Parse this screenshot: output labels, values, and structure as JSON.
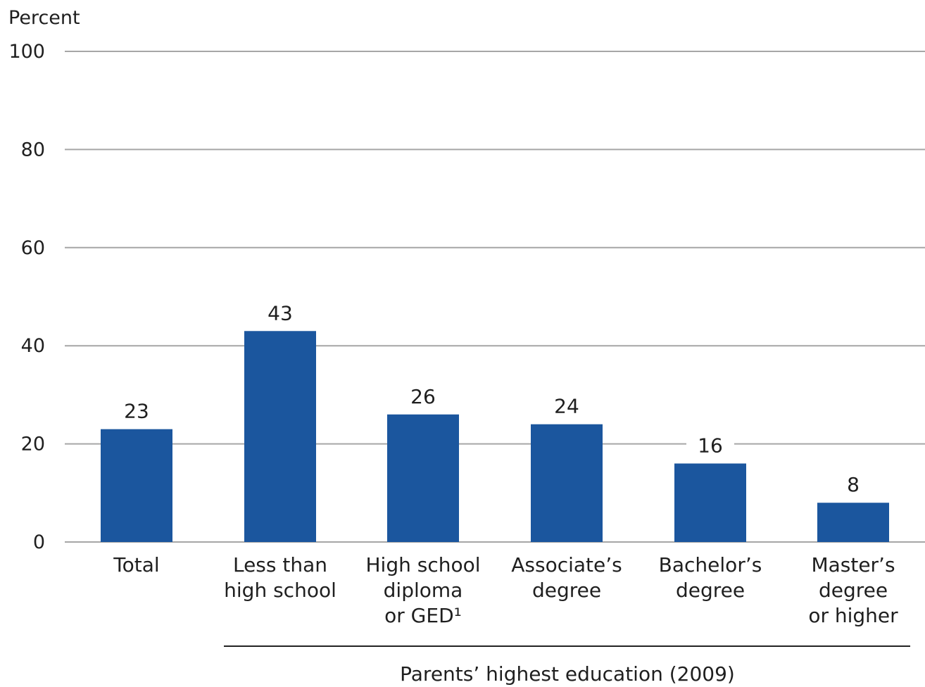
{
  "chart_data": {
    "type": "bar",
    "ylabel": "Percent",
    "ylim": [
      0,
      100
    ],
    "yticks": [
      0,
      20,
      40,
      60,
      80,
      100
    ],
    "grid": true,
    "group_title": "Parents’ highest education (2009)",
    "categories": [
      "Total",
      "Less than high school",
      "High school diploma or GED¹",
      "Associate’s degree",
      "Bachelor’s degree",
      "Master’s degree or higher"
    ],
    "category_lines": [
      [
        "Total"
      ],
      [
        "Less than",
        "high school"
      ],
      [
        "High school",
        "diploma",
        "or GED¹"
      ],
      [
        "Associate’s",
        "degree"
      ],
      [
        "Bachelor’s",
        "degree"
      ],
      [
        "Master’s",
        "degree",
        "or higher"
      ]
    ],
    "values": [
      23,
      43,
      26,
      24,
      16,
      8
    ],
    "data_labels": [
      "23",
      "43",
      "26",
      "24",
      "16",
      "8"
    ],
    "color": "#1b569e"
  }
}
